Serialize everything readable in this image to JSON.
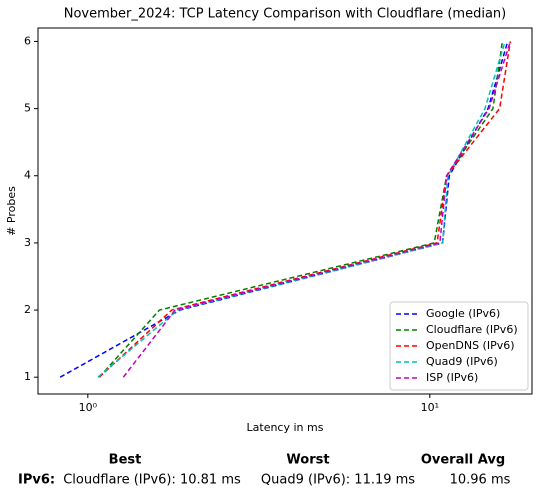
{
  "chart_data": {
    "type": "line",
    "title": "November_2024: TCP Latency Comparison with Cloudflare (median)",
    "xlabel": "Latency in ms",
    "ylabel": "# Probes",
    "xscale": "log",
    "xlim": [
      0.715,
      19.9
    ],
    "xticks": [
      {
        "value": 1,
        "label": "10⁰"
      },
      {
        "value": 10,
        "label": "10¹"
      }
    ],
    "ylim": [
      0.75,
      6.2
    ],
    "yticks": [
      1,
      2,
      3,
      4,
      5,
      6
    ],
    "legend": "lower right",
    "line_style": "dashed",
    "series": [
      {
        "name": "Google (IPv6)",
        "color": "#0000ff",
        "x": [
          0.83,
          1.86,
          10.9,
          11.4,
          14.8,
          16.9
        ],
        "values": [
          1,
          2,
          3,
          4,
          5,
          6
        ]
      },
      {
        "name": "Cloudflare (IPv6)",
        "color": "#008000",
        "x": [
          1.08,
          1.62,
          10.3,
          11.2,
          15.3,
          16.3
        ],
        "values": [
          1,
          2,
          3,
          4,
          5,
          6
        ]
      },
      {
        "name": "OpenDNS (IPv6)",
        "color": "#ff0000",
        "x": [
          1.08,
          1.76,
          10.5,
          11.2,
          16.0,
          17.2
        ],
        "values": [
          1,
          2,
          3,
          4,
          5,
          6
        ]
      },
      {
        "name": "Quad9 (IPv6)",
        "color": "#00bfbf",
        "x": [
          1.07,
          1.83,
          10.9,
          11.3,
          14.5,
          16.6
        ],
        "values": [
          1,
          2,
          3,
          4,
          5,
          6
        ]
      },
      {
        "name": "ISP (IPv6)",
        "color": "#bf00bf",
        "x": [
          1.27,
          1.8,
          10.7,
          11.2,
          14.9,
          17.2
        ],
        "values": [
          1,
          2,
          3,
          4,
          5,
          6
        ]
      }
    ]
  },
  "summary": {
    "headers": [
      "Best",
      "Worst",
      "Overall Avg"
    ],
    "row": {
      "label": "IPv6:",
      "cells": [
        "Cloudflare (IPv6): 10.81 ms",
        "Quad9 (IPv6): 11.19 ms",
        "10.96 ms"
      ]
    }
  }
}
